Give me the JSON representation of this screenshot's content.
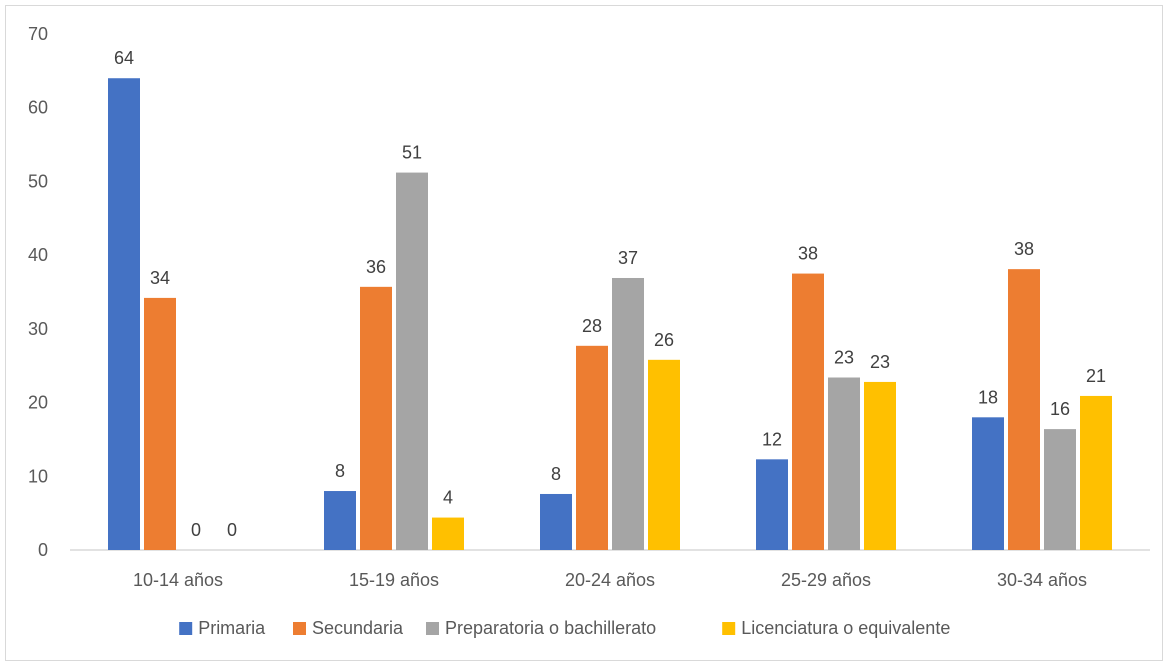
{
  "chart_data": {
    "type": "bar",
    "title": "",
    "xlabel": "",
    "ylabel": "",
    "ylim": [
      0,
      70
    ],
    "yticks": [
      0,
      10,
      20,
      30,
      40,
      50,
      60,
      70
    ],
    "grid": false,
    "legend_position": "bottom",
    "categories": [
      "10-14 años",
      "15-19 años",
      "20-24 años",
      "25-29 años",
      "30-34 años"
    ],
    "series": [
      {
        "name": "Primaria",
        "color": "#4472C4",
        "values": [
          64,
          8,
          7.6,
          12.3,
          18
        ]
      },
      {
        "name": "Secundaria",
        "color": "#ED7D31",
        "values": [
          34.2,
          35.7,
          27.7,
          37.5,
          38.1
        ]
      },
      {
        "name": "Preparatoria o bachillerato",
        "color": "#A5A5A5",
        "values": [
          0,
          51.2,
          36.9,
          23.4,
          16.4
        ]
      },
      {
        "name": "Licenciatura o equivalente",
        "color": "#FFC000",
        "values": [
          0,
          4.4,
          25.8,
          22.8,
          20.9
        ]
      }
    ],
    "data_labels": [
      [
        "64",
        "8",
        "8",
        "12",
        "18"
      ],
      [
        "34",
        "36",
        "28",
        "38",
        "38"
      ],
      [
        "0",
        "51",
        "37",
        "23",
        "16"
      ],
      [
        "0",
        "4",
        "26",
        "23",
        "21"
      ]
    ]
  }
}
